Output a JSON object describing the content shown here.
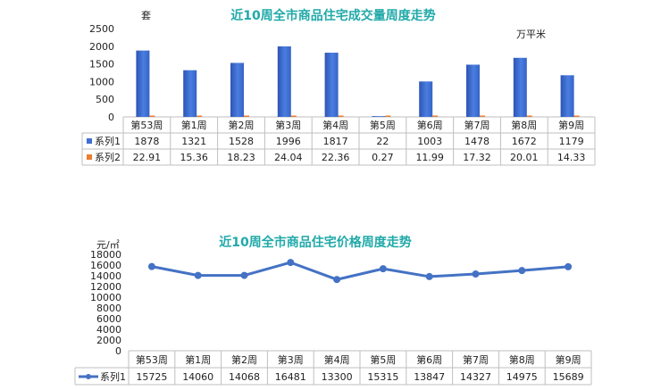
{
  "chart_data": [
    {
      "type": "bar",
      "title": "近10周全市商品住宅成交量周度走势",
      "left_unit": "套",
      "right_unit": "万平米",
      "categories": [
        "第53周",
        "第1周",
        "第2周",
        "第3周",
        "第4周",
        "第5周",
        "第6周",
        "第7周",
        "第8周",
        "第9周"
      ],
      "ylim": [
        0,
        2500
      ],
      "yticks": [
        0,
        500,
        1000,
        1500,
        2000,
        2500
      ],
      "grid": false,
      "legend": "data-table",
      "series": [
        {
          "name": "系列1",
          "color": "#3f6fd1",
          "values": [
            1878,
            1321,
            1528,
            1996,
            1817,
            22,
            1003,
            1478,
            1672,
            1179
          ],
          "labels": [
            "1878",
            "1321",
            "1528",
            "1996",
            "1817",
            "22",
            "1003",
            "1478",
            "1672",
            "1179"
          ]
        },
        {
          "name": "系列2",
          "color": "#ed7d31",
          "values": [
            22.91,
            15.36,
            18.23,
            24.04,
            22.36,
            0.27,
            11.99,
            17.32,
            20.01,
            14.33
          ],
          "labels": [
            "22.91",
            "15.36",
            "18.23",
            "24.04",
            "22.36",
            "0.27",
            "11.99",
            "17.32",
            "20.01",
            "14.33"
          ]
        }
      ]
    },
    {
      "type": "line",
      "title": "近10周全市商品住宅价格周度走势",
      "left_unit": "元/㎡",
      "categories": [
        "第53周",
        "第1周",
        "第2周",
        "第3周",
        "第4周",
        "第5周",
        "第6周",
        "第7周",
        "第8周",
        "第9周"
      ],
      "ylim": [
        0,
        18000
      ],
      "yticks": [
        0,
        2000,
        4000,
        6000,
        8000,
        10000,
        12000,
        14000,
        16000,
        18000
      ],
      "grid": false,
      "legend": "data-table",
      "series": [
        {
          "name": "系列1",
          "color": "#4472c4",
          "values": [
            15725,
            14060,
            14068,
            16481,
            13300,
            15315,
            13847,
            14327,
            14975,
            15689
          ],
          "labels": [
            "15725",
            "14060",
            "14068",
            "16481",
            "13300",
            "15315",
            "13847",
            "14327",
            "14975",
            "15689"
          ]
        }
      ]
    }
  ]
}
